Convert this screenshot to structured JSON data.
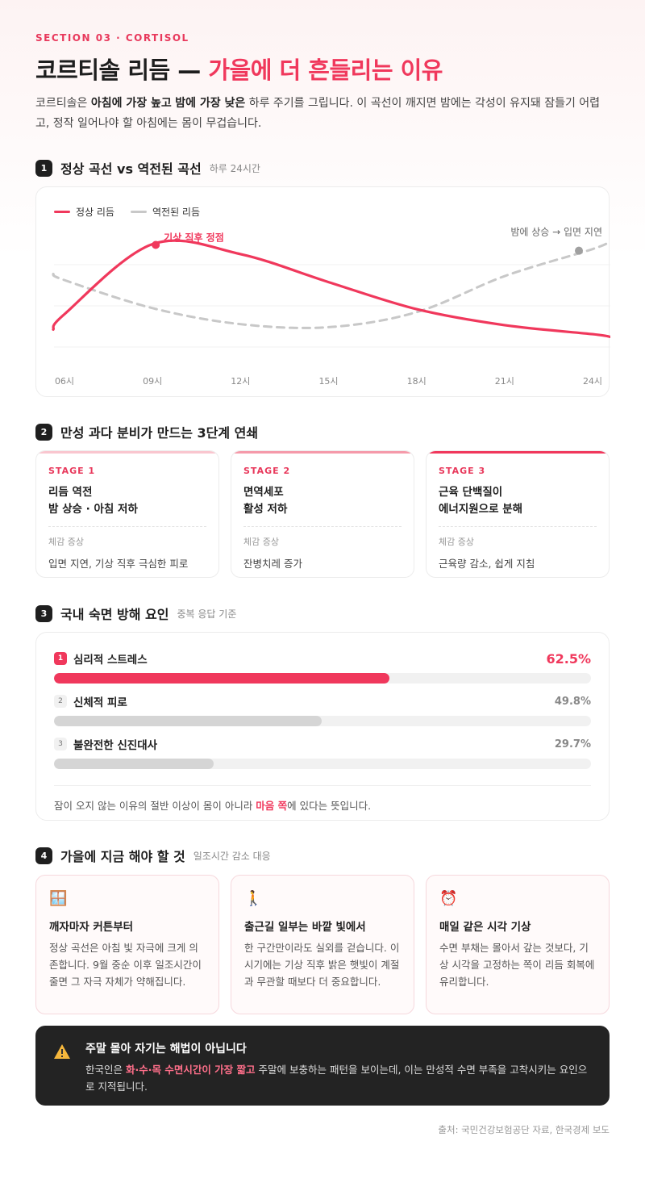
{
  "header": {
    "eyebrow": "SECTION 03 · CORTISOL",
    "title_main": "코르티솔 리듬 — ",
    "title_accent": "가을에 더 흔들리는 이유",
    "intro_1": "코르티솔은 ",
    "intro_b1": "아침에 가장 높고",
    "intro_2": " ",
    "intro_b2": "밤에 가장 낮은",
    "intro_3": " 하루 주기를 그립니다. 이 곡선이 깨지면 밤에는 각성이 유지돼 잠들기 어렵고, 정작 일어나야 할 아침에는 몸이 무겁습니다."
  },
  "section1": {
    "num": "1",
    "title": "정상 곡선 vs 역전된 곡선",
    "sub": "하루 24시간",
    "legend_normal": "정상 리듬",
    "legend_inverted": "역전된 리듬",
    "annotation_peak": "기상 직후 정점",
    "annotation_night": "밤에 상승 → 입면 지연",
    "colors": {
      "normal": "#f0385c",
      "inverted": "#c8c8c8"
    }
  },
  "chart_data": {
    "type": "line",
    "x": [
      "06시",
      "09시",
      "12시",
      "15시",
      "18시",
      "21시",
      "24시"
    ],
    "series": [
      {
        "name": "정상 리듬",
        "values": [
          0.28,
          0.98,
          0.88,
          0.6,
          0.33,
          0.17,
          0.08
        ]
      },
      {
        "name": "역전된 리듬",
        "values": [
          0.62,
          0.34,
          0.18,
          0.15,
          0.3,
          0.66,
          0.93
        ]
      }
    ],
    "annotations": [
      {
        "text": "기상 직후 정점",
        "series": "정상 리듬",
        "x": "09시"
      },
      {
        "text": "밤에 상승 → 입면 지연",
        "series": "역전된 리듬",
        "x": "24시"
      }
    ],
    "grid": "horizontal",
    "legend": "top-left"
  },
  "section2": {
    "num": "2",
    "title": "만성 과다 분비가 만드는 3단계 연쇄",
    "symptom_label": "체감 증상",
    "stages": [
      {
        "label": "STAGE 1",
        "name": "리듬 역전\n밤 상승 · 아침 저하",
        "symptom": "입면 지연, 기상 직후 극심한 피로",
        "bar_color": "#f9c6cf"
      },
      {
        "label": "STAGE 2",
        "name": "면역세포\n활성 저하",
        "symptom": "잔병치레 증가",
        "bar_color": "#f59aaa"
      },
      {
        "label": "STAGE 3",
        "name": "근육 단백질이\n에너지원으로 분해",
        "symptom": "근육량 감소, 쉽게 지침",
        "bar_color": "#f0385c"
      }
    ]
  },
  "section3": {
    "num": "3",
    "title": "국내 숙면 방해 요인",
    "sub": "중복 응답 기준",
    "factors": [
      {
        "rank": "1",
        "label": "심리적 스트레스",
        "pct_text": "62.5%",
        "value": 62.5,
        "color": "#f0385c"
      },
      {
        "rank": "2",
        "label": "신체적 피로",
        "pct_text": "49.8%",
        "value": 49.8,
        "color": "#d5d5d5"
      },
      {
        "rank": "3",
        "label": "불완전한 신진대사",
        "pct_text": "29.7%",
        "value": 29.7,
        "color": "#d5d5d5"
      }
    ],
    "note_1": "잠이 오지 않는 이유의 절반 이상이 몸이 아니라 ",
    "note_pink": "마음 쪽",
    "note_2": "에 있다는 뜻입니다."
  },
  "section4": {
    "num": "4",
    "title": "가을에 지금 해야 할 것",
    "sub": "일조시간 감소 대응",
    "tips": [
      {
        "icon": "window-icon",
        "glyph": "🪟",
        "title": "깨자마자 커튼부터",
        "desc": "정상 곡선은 아침 빛 자극에 크게 의존합니다. 9월 중순 이후 일조시간이 줄면 그 자극 자체가 약해집니다."
      },
      {
        "icon": "walking-icon",
        "glyph": "🚶",
        "title": "출근길 일부는 바깥 빛에서",
        "desc": "한 구간만이라도 실외를 걷습니다. 이 시기에는 기상 직후 밝은 햇빛이 계절과 무관할 때보다 더 중요합니다."
      },
      {
        "icon": "alarm-clock-icon",
        "glyph": "⏰",
        "title": "매일 같은 시각 기상",
        "desc": "수면 부채는 몰아서 갚는 것보다, 기상 시각을 고정하는 쪽이 리듬 회복에 유리합니다."
      }
    ]
  },
  "warning": {
    "icon": "warning-icon",
    "title": "주말 몰아 자기는 해법이 아닙니다",
    "desc_1": "한국인은 ",
    "desc_pink": "화·수·목 수면시간이 가장 짧고",
    "desc_2": " 주말에 보충하는 패턴을 보이는데, 이는 만성적 수면 부족을 고착시키는 요인으로 지적됩니다."
  },
  "source": "출처: 국민건강보험공단 자료, 한국경제 보도"
}
